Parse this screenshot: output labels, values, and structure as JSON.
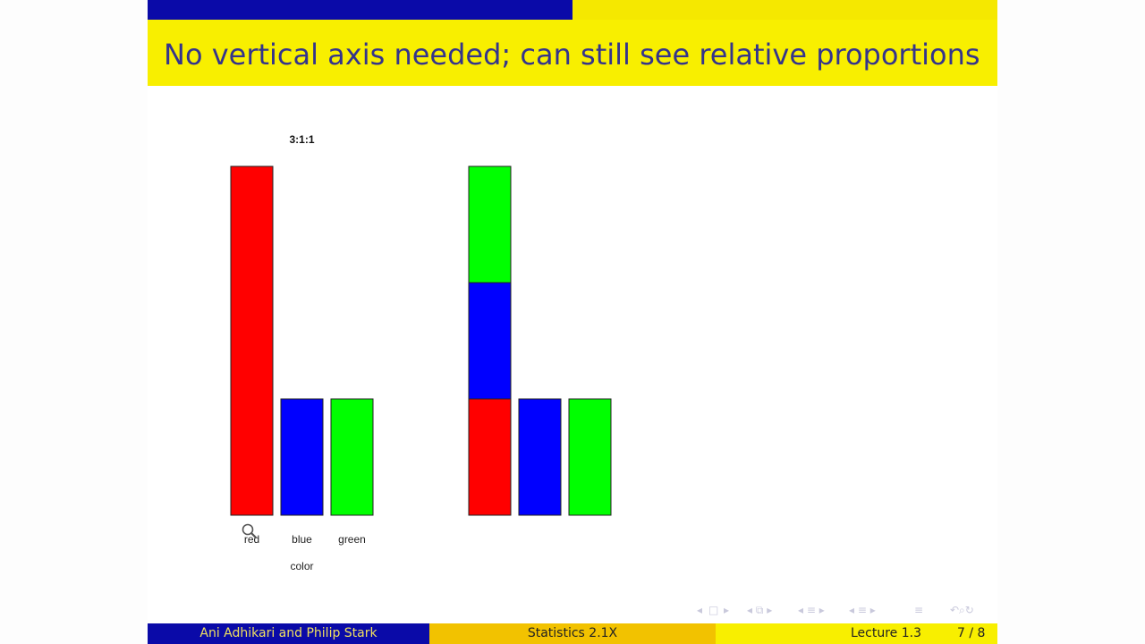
{
  "slide": {
    "title": "No vertical axis needed; can still see relative proportions",
    "progress_fraction": 0.5
  },
  "footer": {
    "authors": "Ani Adhikari and Philip Stark",
    "course": "Statistics 2.1X",
    "lecture": "Lecture 1.3",
    "page": "7 / 8"
  },
  "chart_data": [
    {
      "type": "bar",
      "title": "3:1:1",
      "xlabel": "color",
      "ylabel": "",
      "categories": [
        "red",
        "blue",
        "green"
      ],
      "values": [
        3,
        1,
        1
      ],
      "colors": [
        "#ff0000",
        "#0000ff",
        "#00ff00"
      ],
      "axes_visible": false
    },
    {
      "type": "bar",
      "title": "",
      "xlabel": "",
      "ylabel": "",
      "stacked_bar": {
        "segments": [
          {
            "category": "red",
            "value": 1,
            "color": "#ff0000"
          },
          {
            "category": "blue",
            "value": 1,
            "color": "#0000ff"
          },
          {
            "category": "green",
            "value": 1,
            "color": "#00ff00"
          }
        ]
      },
      "categories": [
        "blue",
        "green"
      ],
      "values": [
        1,
        1
      ],
      "colors": [
        "#0000ff",
        "#00ff00"
      ],
      "axes_visible": false
    }
  ],
  "icons": {
    "navigation": [
      "nav-frame-left-icon",
      "nav-frame-right-icon",
      "nav-section-icon",
      "nav-subsection-icon",
      "nav-align-icon",
      "nav-search-icon",
      "nav-back-icon"
    ],
    "cursor": "magnifier-icon"
  }
}
